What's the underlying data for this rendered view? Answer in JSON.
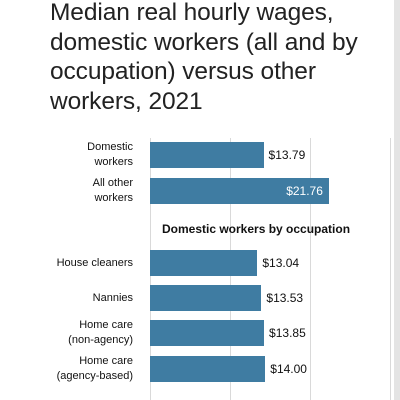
{
  "chart_data": {
    "type": "bar",
    "orientation": "horizontal",
    "title": "Median real hourly wages, domestic workers (all and by occupation) versus other workers, 2021",
    "xlabel": "",
    "ylabel": "",
    "xlim": [
      0,
      23.5
    ],
    "grid": true,
    "groups": [
      {
        "heading": "",
        "categories": [
          "Domestic\nworkers",
          "All other\nworkers"
        ],
        "values": [
          13.79,
          21.76
        ],
        "labels": [
          "$13.79",
          "$21.76"
        ]
      },
      {
        "heading": "Domestic workers by occupation",
        "categories": [
          "House cleaners",
          "Nannies",
          "Home care\n(non-agency)",
          "Home care\n(agency-based)"
        ],
        "values": [
          13.04,
          13.53,
          13.85,
          14.0
        ],
        "labels": [
          "$13.04",
          "$13.53",
          "$13.85",
          "$14.00"
        ]
      }
    ],
    "colors": {
      "bar": "#3f7ca2",
      "label_outside": "#111111",
      "label_inside": "#ffffff"
    }
  }
}
